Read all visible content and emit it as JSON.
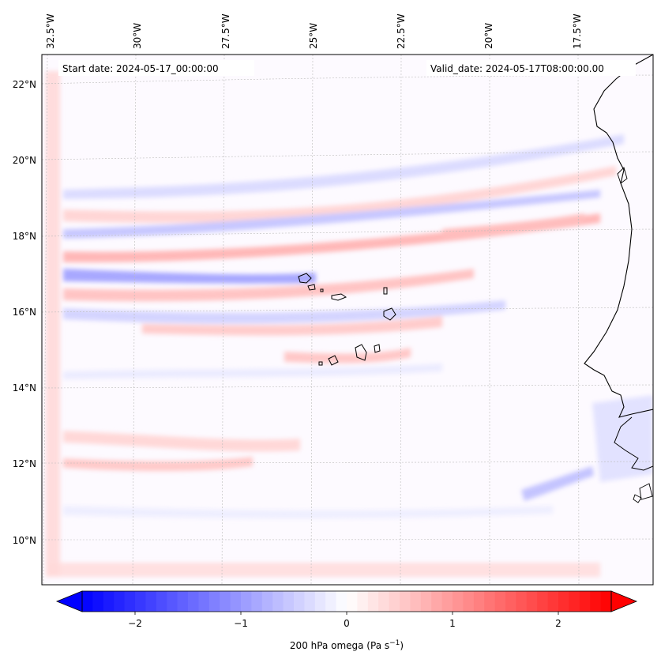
{
  "map": {
    "start_date": "Start date: 2024-05-17_00:00:00",
    "valid_date": "Valid_date: 2024-05-17T08:00:00.00",
    "lon_labels": [
      "32.5°W",
      "30°W",
      "27.5°W",
      "25°W",
      "22.5°W",
      "20°W",
      "17.5°W"
    ],
    "lat_labels": [
      "22°N",
      "20°N",
      "18°N",
      "16°N",
      "14°N",
      "12°N",
      "10°N"
    ]
  },
  "colorbar": {
    "label_main": "200 hPa omega (Pa s",
    "label_sup": "−1",
    "label_end": ")",
    "ticks": [
      "−2",
      "−1",
      "0",
      "1",
      "2"
    ],
    "colors": {
      "min": "#0000ff",
      "mid": "#ffffff",
      "max": "#ff0000"
    }
  }
}
